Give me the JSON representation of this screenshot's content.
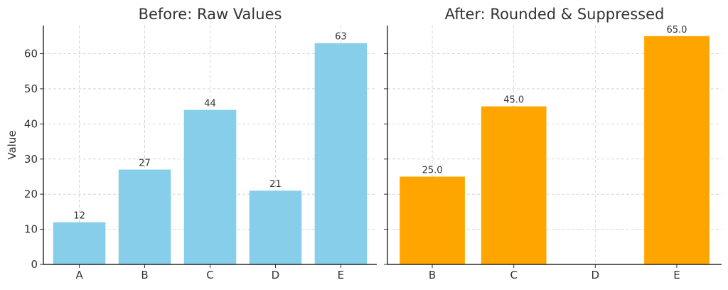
{
  "chart_data": [
    {
      "type": "bar",
      "title": "Before: Raw Values",
      "ylabel": "Value",
      "xlabel": "",
      "categories": [
        "A",
        "B",
        "C",
        "D",
        "E"
      ],
      "values": [
        12,
        27,
        44,
        21,
        63
      ],
      "data_labels": [
        "12",
        "27",
        "44",
        "21",
        "63"
      ],
      "ylim": [
        0,
        68
      ],
      "yticks": [
        0,
        10,
        20,
        30,
        40,
        50,
        60
      ],
      "ytick_labels": [
        "0",
        "10",
        "20",
        "30",
        "40",
        "50",
        "60"
      ],
      "color": "#87ceeb",
      "grid": true
    },
    {
      "type": "bar",
      "title": "After: Rounded & Suppressed",
      "ylabel": "",
      "xlabel": "",
      "categories": [
        "B",
        "C",
        "D",
        "E"
      ],
      "values": [
        25.0,
        45.0,
        null,
        65.0
      ],
      "data_labels": [
        "25.0",
        "45.0",
        "",
        "65.0"
      ],
      "ylim": [
        0,
        68
      ],
      "yticks": [
        0,
        10,
        20,
        30,
        40,
        50,
        60
      ],
      "ytick_labels": [
        "",
        "",
        "",
        "",
        "",
        "",
        ""
      ],
      "color": "#ffa500",
      "grid": true
    }
  ]
}
